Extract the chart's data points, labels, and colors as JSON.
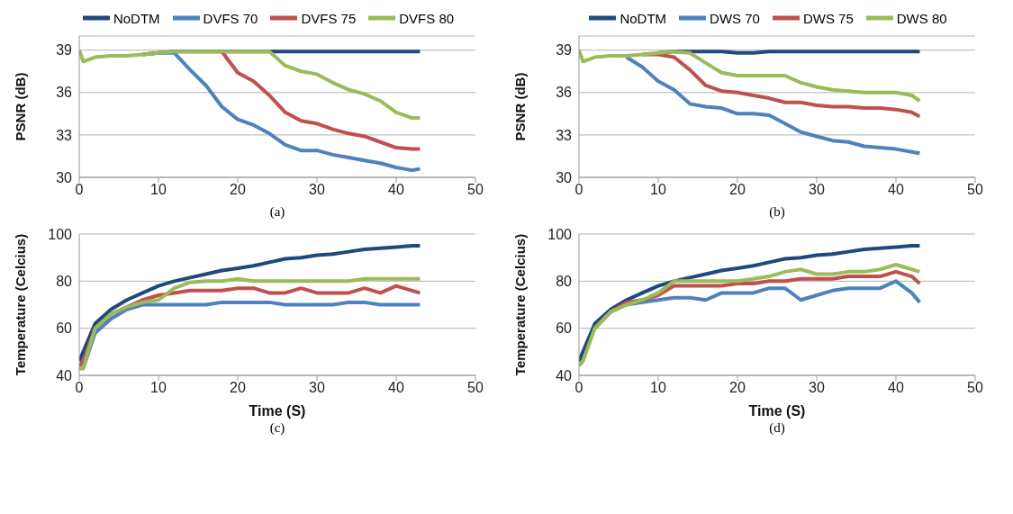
{
  "chart_data": [
    {
      "type": "line",
      "ylabel": "PSNR (dB)",
      "annotations": [
        "(a)"
      ],
      "legend": "top",
      "grid": "y",
      "xlim": [
        0,
        50
      ],
      "xticks": [
        0,
        10,
        20,
        30,
        40,
        50
      ],
      "ylim": [
        30,
        40
      ],
      "yticks": [
        30,
        33,
        36,
        39
      ],
      "x": [
        0,
        0.5,
        2,
        4,
        6,
        8,
        10,
        12,
        14,
        16,
        18,
        20,
        22,
        24,
        26,
        28,
        30,
        32,
        34,
        36,
        38,
        40,
        42,
        43
      ],
      "series": [
        {
          "name": "NoDTM",
          "color": "#1f497d",
          "values": [
            null,
            null,
            null,
            null,
            null,
            38.7,
            38.8,
            38.9,
            38.9,
            38.9,
            38.9,
            38.9,
            38.9,
            38.9,
            38.9,
            38.9,
            38.9,
            38.9,
            38.9,
            38.9,
            38.9,
            38.9,
            38.9,
            38.9
          ]
        },
        {
          "name": "DVFS 70",
          "color": "#4f81bd",
          "values": [
            null,
            null,
            null,
            null,
            null,
            38.7,
            38.8,
            38.8,
            37.6,
            36.5,
            35.0,
            34.1,
            33.7,
            33.1,
            32.3,
            31.9,
            31.9,
            31.6,
            31.4,
            31.2,
            31.0,
            30.7,
            30.5,
            30.6
          ]
        },
        {
          "name": "DVFS 75",
          "color": "#c0504d",
          "values": [
            null,
            null,
            null,
            null,
            null,
            null,
            null,
            null,
            null,
            null,
            38.9,
            37.4,
            36.8,
            35.8,
            34.6,
            34.0,
            33.8,
            33.4,
            33.1,
            32.9,
            32.5,
            32.1,
            32.0,
            32.0
          ]
        },
        {
          "name": "DVFS 80",
          "color": "#9bbb59",
          "values": [
            39.0,
            38.2,
            38.5,
            38.6,
            38.6,
            38.7,
            38.8,
            38.9,
            38.9,
            38.9,
            38.9,
            38.9,
            38.9,
            38.9,
            37.9,
            37.5,
            37.3,
            36.7,
            36.2,
            35.9,
            35.4,
            34.6,
            34.2,
            34.2
          ]
        }
      ]
    },
    {
      "type": "line",
      "ylabel": "PSNR (dB)",
      "annotations": [
        "(b)"
      ],
      "legend": "top",
      "grid": "y",
      "xlim": [
        0,
        50
      ],
      "xticks": [
        0,
        10,
        20,
        30,
        40,
        50
      ],
      "ylim": [
        30,
        40
      ],
      "yticks": [
        30,
        33,
        36,
        39
      ],
      "x": [
        0,
        0.5,
        2,
        4,
        6,
        8,
        10,
        12,
        14,
        16,
        18,
        20,
        22,
        24,
        26,
        28,
        30,
        32,
        34,
        36,
        38,
        40,
        42,
        43
      ],
      "series": [
        {
          "name": "NoDTM",
          "color": "#1f497d",
          "values": [
            null,
            null,
            null,
            null,
            null,
            null,
            38.8,
            38.9,
            38.9,
            38.9,
            38.9,
            38.8,
            38.8,
            38.9,
            38.9,
            38.9,
            38.9,
            38.9,
            38.9,
            38.9,
            38.9,
            38.9,
            38.9,
            38.9
          ]
        },
        {
          "name": "DWS 70",
          "color": "#4f81bd",
          "values": [
            null,
            null,
            null,
            null,
            38.5,
            37.8,
            36.8,
            36.2,
            35.2,
            35.0,
            34.9,
            34.5,
            34.5,
            34.4,
            33.8,
            33.2,
            32.9,
            32.6,
            32.5,
            32.2,
            32.1,
            32.0,
            31.8,
            31.7
          ]
        },
        {
          "name": "DWS 75",
          "color": "#c0504d",
          "values": [
            null,
            null,
            null,
            null,
            null,
            38.7,
            38.7,
            38.5,
            37.6,
            36.5,
            36.1,
            36.0,
            35.8,
            35.6,
            35.3,
            35.3,
            35.1,
            35.0,
            35.0,
            34.9,
            34.9,
            34.8,
            34.6,
            34.3
          ]
        },
        {
          "name": "DWS 80",
          "color": "#9bbb59",
          "values": [
            39.0,
            38.2,
            38.5,
            38.6,
            38.6,
            38.7,
            38.8,
            38.9,
            38.8,
            38.1,
            37.4,
            37.2,
            37.2,
            37.2,
            37.2,
            36.7,
            36.4,
            36.2,
            36.1,
            36.0,
            36.0,
            36.0,
            35.8,
            35.4
          ]
        }
      ]
    },
    {
      "type": "line",
      "xlabel": "Time (S)",
      "ylabel": "Temperature (Celcius)",
      "annotations": [
        "(c)"
      ],
      "grid": "y",
      "xlim": [
        0,
        50
      ],
      "xticks": [
        0,
        10,
        20,
        30,
        40,
        50
      ],
      "ylim": [
        40,
        100
      ],
      "yticks": [
        40,
        60,
        80,
        100
      ],
      "x": [
        0,
        0.5,
        2,
        4,
        6,
        8,
        10,
        12,
        14,
        16,
        18,
        20,
        22,
        24,
        26,
        28,
        30,
        32,
        34,
        36,
        38,
        40,
        42,
        43
      ],
      "series": [
        {
          "color": "#1f497d",
          "values": [
            46,
            50,
            62,
            68,
            72,
            75,
            78,
            80,
            81.5,
            83,
            84.5,
            85.5,
            86.5,
            88,
            89.5,
            90,
            91,
            91.5,
            92.5,
            93.5,
            94,
            94.5,
            95,
            95
          ]
        },
        {
          "color": "#4f81bd",
          "values": [
            43,
            43,
            58,
            64,
            68,
            70,
            70,
            70,
            70,
            70,
            71,
            71,
            71,
            71,
            70,
            70,
            70,
            70,
            71,
            71,
            70,
            70,
            70,
            70
          ]
        },
        {
          "color": "#c0504d",
          "values": [
            44,
            46,
            60,
            66,
            69,
            72,
            74,
            75,
            76,
            76,
            76,
            77,
            77,
            75,
            75,
            77,
            75,
            75,
            75,
            77,
            75,
            78,
            76,
            75
          ]
        },
        {
          "color": "#9bbb59",
          "values": [
            43,
            43,
            60,
            66,
            69,
            71,
            72,
            77,
            79.5,
            80,
            80,
            81,
            80,
            80,
            80,
            80,
            80,
            80,
            80,
            81,
            81,
            81,
            81,
            81
          ]
        }
      ]
    },
    {
      "type": "line",
      "xlabel": "Time (S)",
      "ylabel": "Temperature (Celcius)",
      "annotations": [
        "(d)"
      ],
      "grid": "y",
      "xlim": [
        0,
        50
      ],
      "xticks": [
        0,
        10,
        20,
        30,
        40,
        50
      ],
      "ylim": [
        40,
        100
      ],
      "yticks": [
        40,
        60,
        80,
        100
      ],
      "x": [
        0,
        0.5,
        2,
        4,
        6,
        8,
        10,
        12,
        14,
        16,
        18,
        20,
        22,
        24,
        26,
        28,
        30,
        32,
        34,
        36,
        38,
        40,
        42,
        43
      ],
      "series": [
        {
          "color": "#1f497d",
          "values": [
            46,
            50,
            62,
            68,
            72,
            75,
            78,
            80,
            81.5,
            83,
            84.5,
            85.5,
            86.5,
            88,
            89.5,
            90,
            91,
            91.5,
            92.5,
            93.5,
            94,
            94.5,
            95,
            95
          ]
        },
        {
          "color": "#4f81bd",
          "values": [
            null,
            null,
            60,
            67,
            70,
            71,
            72,
            73,
            73,
            72,
            75,
            75,
            75,
            77,
            77,
            72,
            74,
            76,
            77,
            77,
            77,
            80,
            75,
            71
          ]
        },
        {
          "color": "#c0504d",
          "values": [
            null,
            null,
            60,
            67,
            71,
            72,
            74,
            78,
            78,
            78,
            78,
            79,
            79,
            80,
            80,
            81,
            81,
            81,
            82,
            82,
            82,
            84,
            82,
            79
          ]
        },
        {
          "color": "#9bbb59",
          "values": [
            44,
            46,
            60,
            67,
            70,
            72,
            75,
            80,
            80,
            80,
            80,
            80,
            81,
            82,
            84,
            85,
            83,
            83,
            84,
            84,
            85,
            87,
            85,
            84
          ]
        }
      ]
    }
  ]
}
